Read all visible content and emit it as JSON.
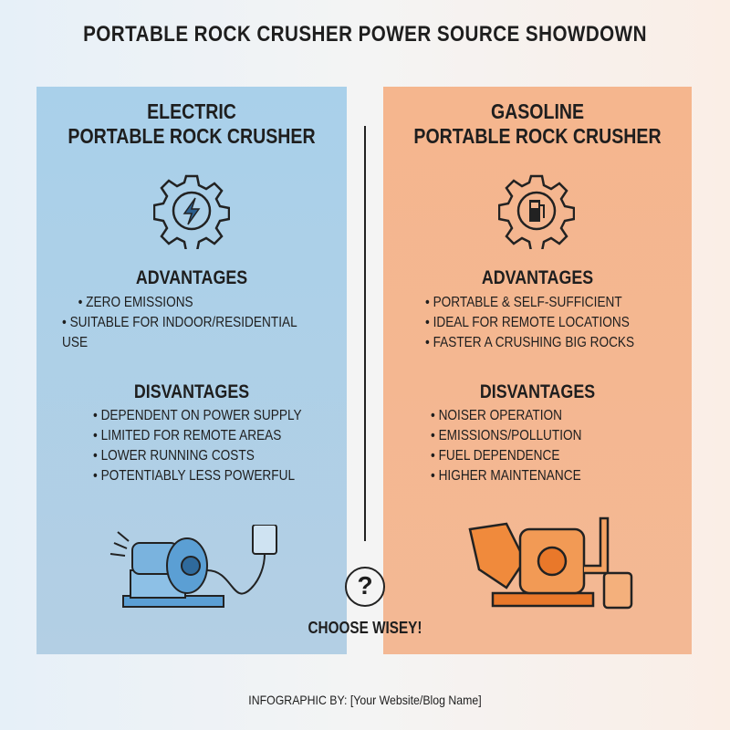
{
  "title": "PORTABLE ROCK CRUSHER POWER SOURCE SHOWDOWN",
  "electric": {
    "heading_line1": "ELECTRIC",
    "heading_line2": "PORTABLE ROCK CRUSHER",
    "icon": "gear-lightning-icon",
    "advantages_title": "ADVANTAGES",
    "advantages": [
      "ZERO EMISSIONS",
      "SUITABLE FOR INDOOR/RESIDENTIAL USE"
    ],
    "disadvantages_title": "DISVANTAGES",
    "disadvantages": [
      "DEPENDENT ON POWER SUPPLY",
      "LIMITED FOR REMOTE AREAS",
      "LOWER RUNNING COSTS",
      "POTENTIABLY LESS POWERFUL"
    ],
    "color": "#a9d0ea"
  },
  "gasoline": {
    "heading_line1": "GASOLINE",
    "heading_line2": "PORTABLE ROCK CRUSHER",
    "icon": "gear-fuel-pump-icon",
    "advantages_title": "ADVANTAGES",
    "advantages": [
      "PORTABLE & SELF-SUFFICIENT",
      "IDEAL FOR REMOTE LOCATIONS",
      "FASTER A CRUSHING BIG ROCKS"
    ],
    "disadvantages_title": "DISVANTAGES",
    "disadvantages": [
      "NOISER OPERATION",
      "EMISSIONS/POLLUTION",
      "FUEL DEPENDENCE",
      "HIGHER MAINTENANCE"
    ],
    "color": "#f5b68e"
  },
  "center": {
    "question": "?",
    "choose": "CHOOSE WISEY!"
  },
  "footer": "INFOGRAPHIC BY: [Your Website/Blog Name]"
}
